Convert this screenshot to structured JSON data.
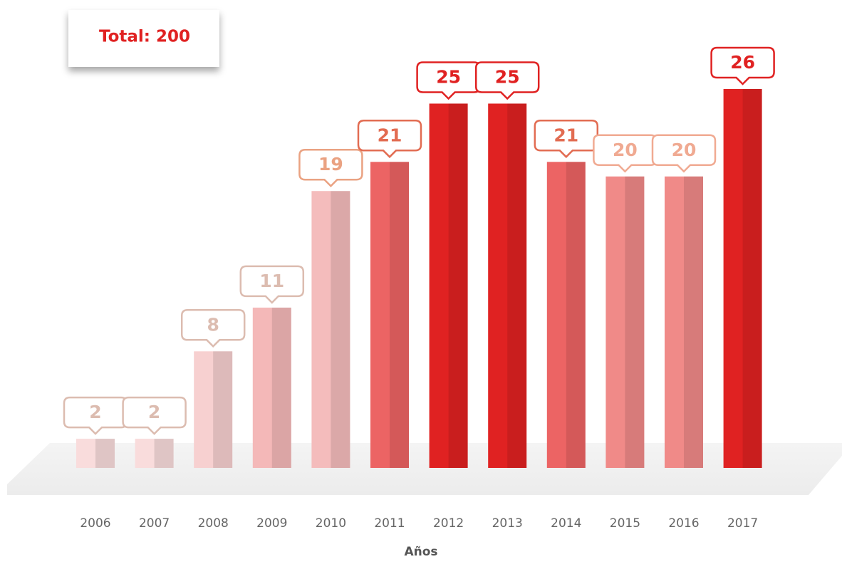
{
  "chart_data": {
    "type": "bar",
    "title": "Total: 200",
    "x_label": "Años",
    "categories": [
      "2006",
      "2007",
      "2008",
      "2009",
      "2010",
      "2011",
      "2012",
      "2013",
      "2014",
      "2015",
      "2016",
      "2017"
    ],
    "values": [
      2,
      2,
      8,
      11,
      19,
      21,
      25,
      25,
      21,
      20,
      20,
      26
    ],
    "colors": [
      "#f9dcdc",
      "#f9dcdc",
      "#f7d0d0",
      "#f4b8b8",
      "#f4bcbc",
      "#ec6464",
      "#e02222",
      "#e02222",
      "#ec6464",
      "#f08a88",
      "#f08a88",
      "#e02222"
    ],
    "label_colors": [
      "#dcbcb0",
      "#dcbcb0",
      "#dcbcb0",
      "#dcbcb0",
      "#eaa282",
      "#e26c52",
      "#e02222",
      "#e02222",
      "#e26c52",
      "#f0aa92",
      "#f0aa92",
      "#e02222"
    ]
  }
}
